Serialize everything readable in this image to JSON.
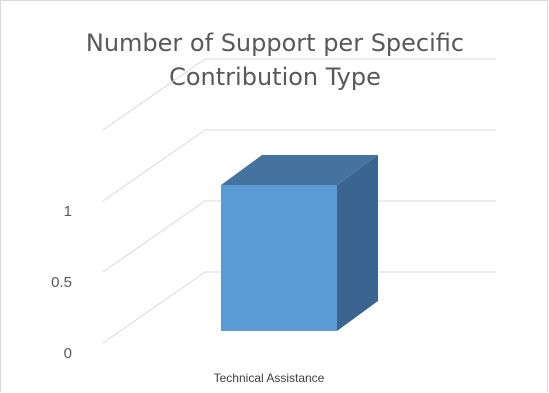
{
  "chart_data": {
    "type": "bar",
    "title": "Number of Support per Specific Contribution Type",
    "categories": [
      "Technical Assistance"
    ],
    "values": [
      1
    ],
    "ylim": [
      0,
      1.5
    ],
    "yticks": [
      0,
      0.5,
      1
    ],
    "ytick_labels": [
      "0",
      "0.5",
      "1"
    ],
    "xlabel": "",
    "ylabel": "",
    "grid": true,
    "legend": "none",
    "colors": {
      "front": "#5b9bd5",
      "top": "#44739f",
      "side": "#3a6590",
      "grid": "#d9d9d9",
      "text": "#595959"
    }
  }
}
